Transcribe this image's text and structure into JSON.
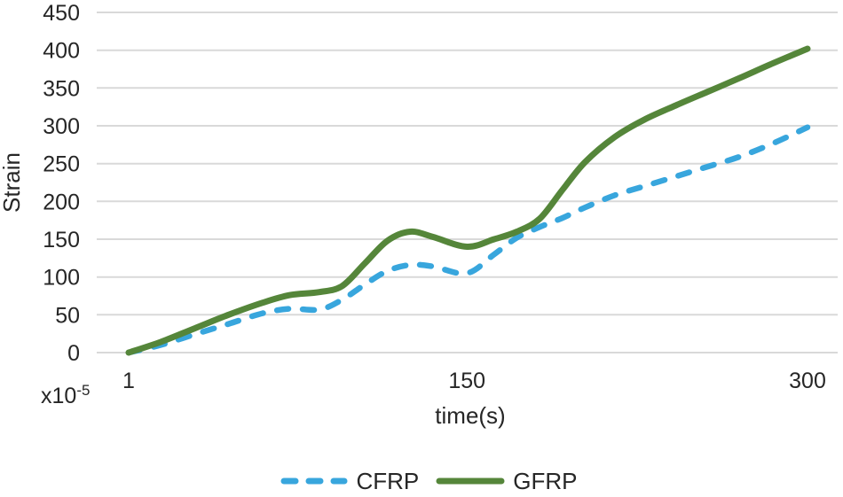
{
  "chart_data": {
    "type": "line",
    "title": "",
    "xlabel": "time(s)",
    "ylabel": "Strain",
    "y_multiplier_base": "x10",
    "y_multiplier_exp": "-5",
    "xlim": [
      1,
      300
    ],
    "ylim": [
      0,
      450
    ],
    "x_ticks": [
      1,
      150,
      300
    ],
    "y_ticks": [
      0,
      50,
      100,
      150,
      200,
      250,
      300,
      350,
      400,
      450
    ],
    "grid": "horizontal-only",
    "gridline_color": "#d9d9d9",
    "text_color": "#262626",
    "legend_position": "bottom-center",
    "x": [
      1,
      15,
      30,
      45,
      60,
      72,
      85,
      95,
      105,
      115,
      125,
      135,
      150,
      162,
      172,
      182,
      192,
      202,
      215,
      228,
      242,
      256,
      270,
      285,
      300
    ],
    "series": [
      {
        "name": "CFRP",
        "color": "#38a6dd",
        "style": "dashed",
        "values": [
          0,
          10,
          24,
          38,
          52,
          58,
          57,
          70,
          90,
          108,
          116,
          114,
          105,
          130,
          152,
          166,
          178,
          192,
          208,
          220,
          233,
          246,
          259,
          277,
          298
        ]
      },
      {
        "name": "GFRP",
        "color": "#55863a",
        "style": "solid",
        "values": [
          0,
          14,
          32,
          50,
          66,
          76,
          80,
          88,
          118,
          148,
          160,
          153,
          140,
          150,
          160,
          177,
          215,
          252,
          285,
          308,
          327,
          345,
          363,
          383,
          402
        ]
      }
    ]
  }
}
